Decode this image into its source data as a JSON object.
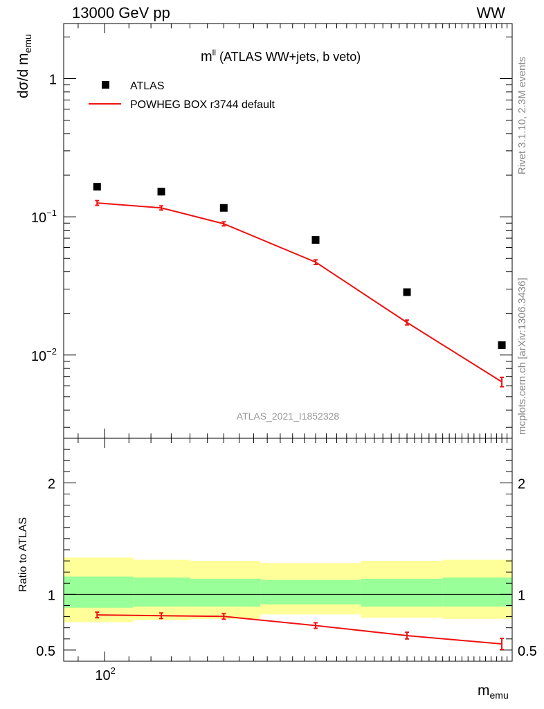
{
  "header": {
    "beam": "13000 GeV pp",
    "process": "WW"
  },
  "side_labels": {
    "rivet": "Rivet 3.1.10,  2.3M events",
    "mcplots": "mcplots.cern.ch [arXiv:1306.3436]"
  },
  "chart_data": [
    {
      "type": "scatter",
      "panel": "main",
      "title_main": "m",
      "title_sup": "ll",
      "title_rest": " (ATLAS WW+jets, b veto)",
      "ylabel_main": "dσ/d m",
      "ylabel_sub": "emu",
      "yscale": "log",
      "ylim": [
        0.0025,
        2.5
      ],
      "xlim": [
        85,
        500
      ],
      "xscale": "log",
      "yticks": [
        "10^-2",
        "10^-1",
        "1"
      ],
      "watermark": "ATLAS_2021_I1852328",
      "legend_position": "top-left",
      "series": [
        {
          "name": "ATLAS",
          "style": "markers",
          "color": "#000000",
          "x": [
            97,
            125,
            160,
            230,
            330,
            480
          ],
          "y": [
            0.165,
            0.152,
            0.116,
            0.068,
            0.0285,
            0.0118
          ]
        },
        {
          "name": "POWHEG BOX r3744 default",
          "style": "line",
          "color": "#ee1111",
          "x": [
            97,
            125,
            160,
            230,
            330,
            480
          ],
          "y": [
            0.126,
            0.116,
            0.089,
            0.047,
            0.0172,
            0.0064
          ],
          "err": [
            0.005,
            0.004,
            0.003,
            0.0018,
            0.0007,
            0.0005
          ]
        }
      ]
    },
    {
      "type": "line",
      "panel": "ratio",
      "ylabel": "Ratio to ATLAS",
      "xlabel_main": "m",
      "xlabel_sub": "emu",
      "xscale": "log",
      "xlim": [
        85,
        500
      ],
      "ylim": [
        0.4,
        2.4
      ],
      "yticks": [
        "0.5",
        "1",
        "2"
      ],
      "xticks": [
        "10^2"
      ],
      "reference_line": 1,
      "bands": {
        "edges": [
          85,
          112,
          140,
          185,
          275,
          380,
          500
        ],
        "yellow_low": [
          0.75,
          0.77,
          0.78,
          0.82,
          0.79,
          0.78
        ],
        "yellow_high": [
          1.33,
          1.31,
          1.3,
          1.28,
          1.3,
          1.31
        ],
        "green_low": [
          0.88,
          0.89,
          0.89,
          0.91,
          0.89,
          0.89
        ],
        "green_high": [
          1.16,
          1.15,
          1.14,
          1.13,
          1.14,
          1.15
        ],
        "yellow_color": "#ffff99",
        "green_color": "#99ff99"
      },
      "series": [
        {
          "name": "POWHEG BOX r3744 default",
          "color": "#ee1111",
          "x": [
            97,
            125,
            160,
            230,
            330,
            480
          ],
          "y": [
            0.815,
            0.808,
            0.802,
            0.72,
            0.63,
            0.555
          ],
          "err": [
            0.025,
            0.025,
            0.025,
            0.025,
            0.03,
            0.05
          ]
        }
      ]
    }
  ]
}
